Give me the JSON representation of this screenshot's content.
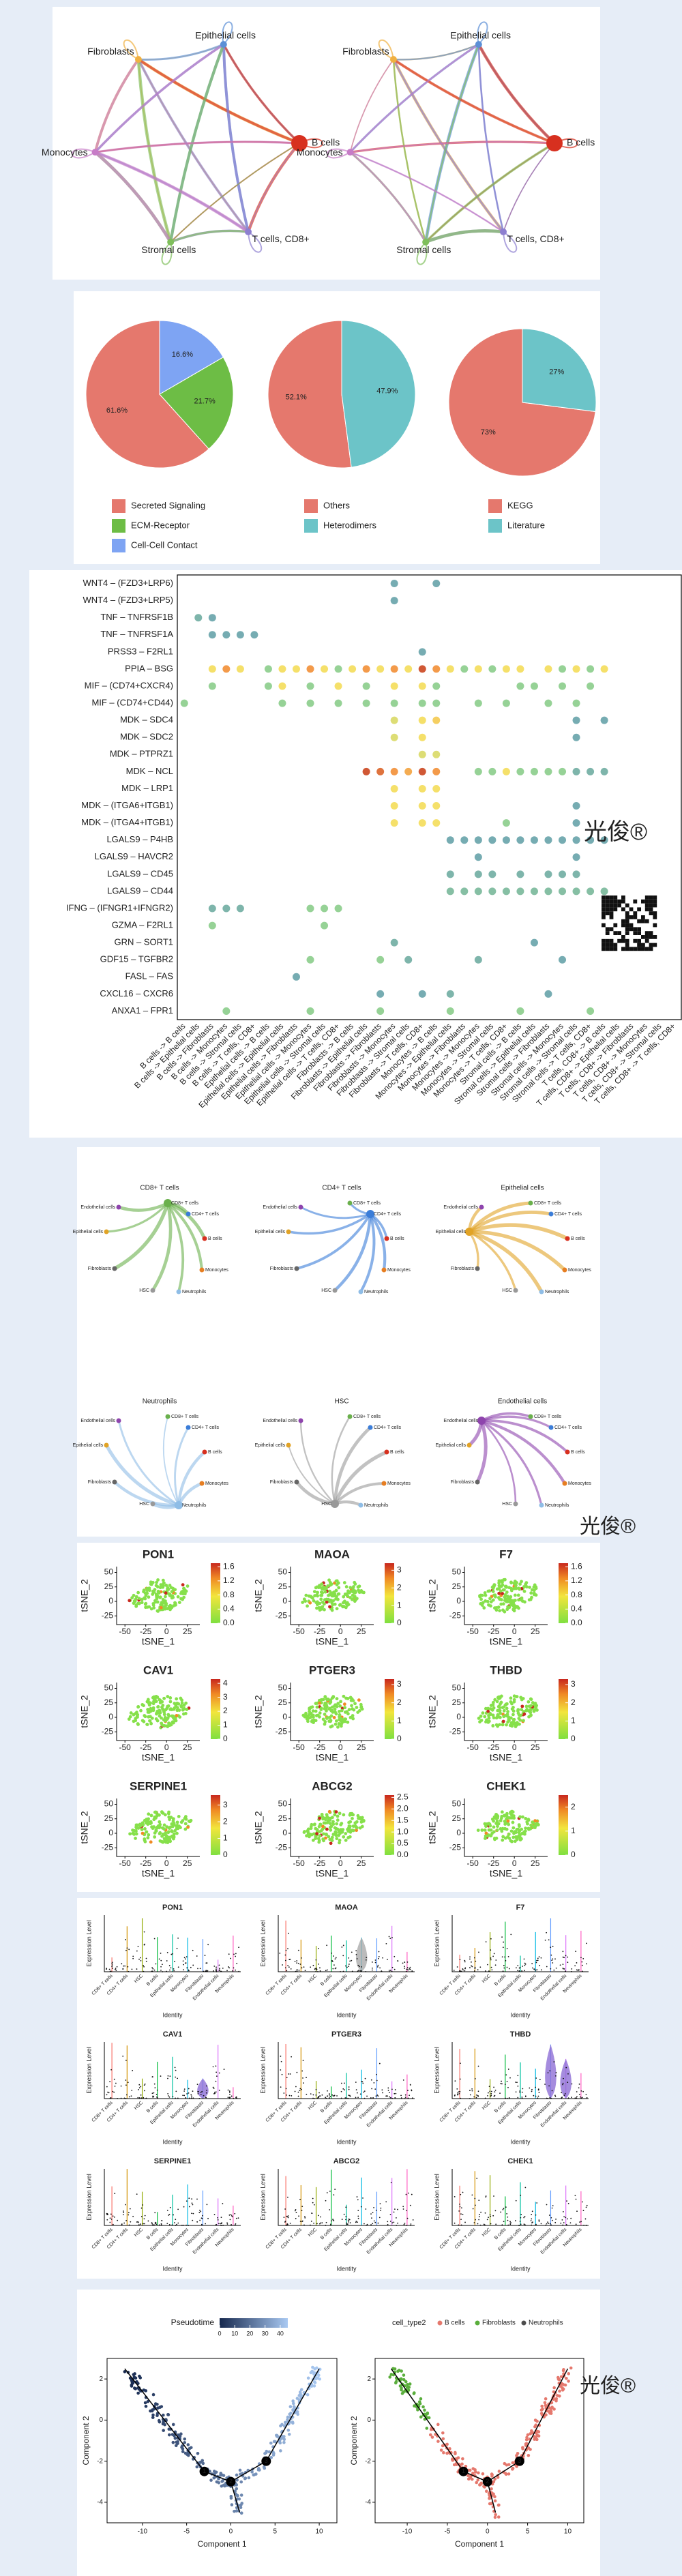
{
  "watermark": "光俊®",
  "network": {
    "nodes": [
      "Fibroblasts",
      "Epithelial cells",
      "B cells",
      "T cells, CD8+",
      "Stromal cells",
      "Monocytes"
    ]
  },
  "pies": [
    {
      "type": "pie",
      "categories": [
        "Secreted Signaling",
        "ECM-Receptor",
        "Cell-Cell Contact"
      ],
      "values": [
        61.6,
        21.7,
        16.6
      ],
      "value_labels": [
        "61.6%",
        "21.7%",
        "16.6%"
      ],
      "colors": [
        "#e5786d",
        "#6dbd45",
        "#7ea4f3"
      ]
    },
    {
      "type": "pie",
      "categories": [
        "Others",
        "Heterodimers"
      ],
      "values": [
        52.1,
        47.9
      ],
      "value_labels": [
        "52.1%",
        "47.9%"
      ],
      "colors": [
        "#e5786d",
        "#6cc4c8"
      ]
    },
    {
      "type": "pie",
      "categories": [
        "KEGG",
        "Literature"
      ],
      "values": [
        73,
        27
      ],
      "value_labels": [
        "73%",
        "27%"
      ],
      "colors": [
        "#e5786d",
        "#6cc4c8"
      ]
    }
  ],
  "dotplot": {
    "rows": [
      "WNT4 – (FZD3+LRP6)",
      "WNT4 – (FZD3+LRP5)",
      "TNF – TNFRSF1B",
      "TNF – TNFRSF1A",
      "PRSS3 – F2RL1",
      "PPIA – BSG",
      "MIF – (CD74+CXCR4)",
      "MIF – (CD74+CD44)",
      "MDK – SDC4",
      "MDK – SDC2",
      "MDK – PTPRZ1",
      "MDK – NCL",
      "MDK – LRP1",
      "MDK – (ITGA6+ITGB1)",
      "MDK – (ITGA4+ITGB1)",
      "LGALS9 – P4HB",
      "LGALS9 – HAVCR2",
      "LGALS9 – CD45",
      "LGALS9 – CD44",
      "IFNG – (IFNGR1+IFNGR2)",
      "GZMA – F2RL1",
      "GRN – SORT1",
      "GDF15 – TGFBR2",
      "FASL – FAS",
      "CXCL16 – CXCR6",
      "ANXA1 – FPR1"
    ],
    "columns": [
      "B cells -> B cells",
      "B cells -> Epithelial cells",
      "B cells -> Fibroblasts",
      "B cells -> Monocytes",
      "B cells -> Stromal cells",
      "B cells -> T cells, CD8+",
      "Epithelial cells -> B cells",
      "Epithelial cells -> Epithelial cells",
      "Epithelial cells -> Fibroblasts",
      "Epithelial cells -> Monocytes",
      "Epithelial cells -> Stromal cells",
      "Epithelial cells -> T cells, CD8+",
      "Fibroblasts -> B cells",
      "Fibroblasts -> Epithelial cells",
      "Fibroblasts -> Fibroblasts",
      "Fibroblasts -> Monocytes",
      "Fibroblasts -> Stromal cells",
      "Fibroblasts -> T cells, CD8+",
      "Monocytes -> B cells",
      "Monocytes -> Epithelial cells",
      "Monocytes -> Fibroblasts",
      "Monocytes -> Monocytes",
      "Monocytes -> Stromal cells",
      "Monocytes -> T cells, CD8+",
      "Stromal cells -> B cells",
      "Stromal cells -> Epithelial cells",
      "Stromal cells -> Fibroblasts",
      "Stromal cells -> Monocytes",
      "Stromal cells -> Stromal cells",
      "Stromal cells -> T cells, CD8+",
      "T cells, CD8+ -> B cells",
      "T cells, CD8+ -> Epithelial cells",
      "T cells, CD8+ -> Fibroblasts",
      "T cells, CD8+ -> Monocytes",
      "T cells, CD8+ -> Stromal cells",
      "T cells, CD8+ -> T cells, CD8+"
    ],
    "dots": [
      [
        0,
        15,
        0.15
      ],
      [
        0,
        18,
        0.15
      ],
      [
        1,
        15,
        0.15
      ],
      [
        2,
        1,
        0.2
      ],
      [
        2,
        2,
        0.15
      ],
      [
        3,
        2,
        0.15
      ],
      [
        3,
        3,
        0.15
      ],
      [
        3,
        4,
        0.15
      ],
      [
        3,
        5,
        0.15
      ],
      [
        4,
        17,
        0.15
      ],
      [
        5,
        2,
        0.55
      ],
      [
        5,
        3,
        0.75
      ],
      [
        5,
        4,
        0.55
      ],
      [
        5,
        6,
        0.35
      ],
      [
        5,
        7,
        0.55
      ],
      [
        5,
        8,
        0.55
      ],
      [
        5,
        9,
        0.75
      ],
      [
        5,
        10,
        0.55
      ],
      [
        5,
        11,
        0.35
      ],
      [
        5,
        12,
        0.55
      ],
      [
        5,
        13,
        0.75
      ],
      [
        5,
        14,
        0.55
      ],
      [
        5,
        15,
        0.75
      ],
      [
        5,
        16,
        0.55
      ],
      [
        5,
        17,
        0.92
      ],
      [
        5,
        18,
        0.75
      ],
      [
        5,
        19,
        0.55
      ],
      [
        5,
        20,
        0.35
      ],
      [
        5,
        21,
        0.55
      ],
      [
        5,
        22,
        0.35
      ],
      [
        5,
        23,
        0.55
      ],
      [
        5,
        24,
        0.55
      ],
      [
        5,
        26,
        0.55
      ],
      [
        5,
        27,
        0.35
      ],
      [
        5,
        28,
        0.55
      ],
      [
        5,
        29,
        0.35
      ],
      [
        5,
        30,
        0.55
      ],
      [
        6,
        2,
        0.35
      ],
      [
        6,
        6,
        0.35
      ],
      [
        6,
        7,
        0.55
      ],
      [
        6,
        9,
        0.35
      ],
      [
        6,
        11,
        0.55
      ],
      [
        6,
        13,
        0.35
      ],
      [
        6,
        15,
        0.55
      ],
      [
        6,
        17,
        0.55
      ],
      [
        6,
        18,
        0.35
      ],
      [
        6,
        24,
        0.35
      ],
      [
        6,
        25,
        0.35
      ],
      [
        6,
        27,
        0.35
      ],
      [
        6,
        29,
        0.35
      ],
      [
        7,
        0,
        0.35
      ],
      [
        7,
        7,
        0.35
      ],
      [
        7,
        9,
        0.35
      ],
      [
        7,
        11,
        0.35
      ],
      [
        7,
        13,
        0.35
      ],
      [
        7,
        15,
        0.35
      ],
      [
        7,
        17,
        0.35
      ],
      [
        7,
        18,
        0.35
      ],
      [
        7,
        21,
        0.35
      ],
      [
        7,
        23,
        0.35
      ],
      [
        7,
        26,
        0.35
      ],
      [
        7,
        28,
        0.35
      ],
      [
        8,
        15,
        0.5
      ],
      [
        8,
        17,
        0.55
      ],
      [
        8,
        18,
        0.6
      ],
      [
        8,
        28,
        0.15
      ],
      [
        8,
        30,
        0.15
      ],
      [
        9,
        15,
        0.5
      ],
      [
        9,
        17,
        0.55
      ],
      [
        9,
        28,
        0.15
      ],
      [
        10,
        17,
        0.5
      ],
      [
        10,
        18,
        0.5
      ],
      [
        11,
        13,
        0.92
      ],
      [
        11,
        14,
        0.85
      ],
      [
        11,
        15,
        0.75
      ],
      [
        11,
        16,
        0.7
      ],
      [
        11,
        17,
        0.92
      ],
      [
        11,
        18,
        0.75
      ],
      [
        11,
        21,
        0.35
      ],
      [
        11,
        22,
        0.35
      ],
      [
        11,
        23,
        0.55
      ],
      [
        11,
        24,
        0.35
      ],
      [
        11,
        25,
        0.35
      ],
      [
        11,
        26,
        0.35
      ],
      [
        11,
        27,
        0.35
      ],
      [
        11,
        28,
        0.2
      ],
      [
        11,
        29,
        0.2
      ],
      [
        11,
        30,
        0.2
      ],
      [
        12,
        15,
        0.55
      ],
      [
        12,
        17,
        0.55
      ],
      [
        12,
        18,
        0.55
      ],
      [
        13,
        15,
        0.55
      ],
      [
        13,
        17,
        0.55
      ],
      [
        13,
        18,
        0.55
      ],
      [
        13,
        28,
        0.15
      ],
      [
        14,
        15,
        0.55
      ],
      [
        14,
        17,
        0.55
      ],
      [
        14,
        18,
        0.55
      ],
      [
        14,
        23,
        0.35
      ],
      [
        14,
        28,
        0.15
      ],
      [
        15,
        19,
        0.15
      ],
      [
        15,
        20,
        0.15
      ],
      [
        15,
        21,
        0.15
      ],
      [
        15,
        22,
        0.15
      ],
      [
        15,
        23,
        0.15
      ],
      [
        15,
        24,
        0.15
      ],
      [
        15,
        25,
        0.15
      ],
      [
        15,
        26,
        0.15
      ],
      [
        15,
        27,
        0.15
      ],
      [
        15,
        28,
        0.15
      ],
      [
        15,
        29,
        0.15
      ],
      [
        15,
        30,
        0.15
      ],
      [
        16,
        21,
        0.15
      ],
      [
        16,
        28,
        0.15
      ],
      [
        17,
        19,
        0.2
      ],
      [
        17,
        21,
        0.2
      ],
      [
        17,
        22,
        0.2
      ],
      [
        17,
        24,
        0.2
      ],
      [
        17,
        26,
        0.2
      ],
      [
        17,
        27,
        0.2
      ],
      [
        17,
        28,
        0.2
      ],
      [
        18,
        19,
        0.25
      ],
      [
        18,
        20,
        0.25
      ],
      [
        18,
        21,
        0.25
      ],
      [
        18,
        22,
        0.25
      ],
      [
        18,
        23,
        0.25
      ],
      [
        18,
        24,
        0.25
      ],
      [
        18,
        25,
        0.25
      ],
      [
        18,
        26,
        0.25
      ],
      [
        18,
        27,
        0.25
      ],
      [
        18,
        28,
        0.25
      ],
      [
        18,
        29,
        0.25
      ],
      [
        18,
        30,
        0.25
      ],
      [
        19,
        2,
        0.2
      ],
      [
        19,
        3,
        0.2
      ],
      [
        19,
        4,
        0.2
      ],
      [
        19,
        9,
        0.35
      ],
      [
        19,
        10,
        0.35
      ],
      [
        19,
        11,
        0.35
      ],
      [
        20,
        2,
        0.35
      ],
      [
        20,
        10,
        0.35
      ],
      [
        21,
        15,
        0.2
      ],
      [
        21,
        25,
        0.15
      ],
      [
        22,
        9,
        0.35
      ],
      [
        22,
        14,
        0.35
      ],
      [
        22,
        16,
        0.2
      ],
      [
        22,
        21,
        0.2
      ],
      [
        22,
        27,
        0.15
      ],
      [
        23,
        8,
        0.15
      ],
      [
        24,
        14,
        0.15
      ],
      [
        24,
        17,
        0.15
      ],
      [
        24,
        19,
        0.2
      ],
      [
        24,
        26,
        0.15
      ],
      [
        25,
        3,
        0.35
      ],
      [
        25,
        9,
        0.35
      ],
      [
        25,
        14,
        0.35
      ],
      [
        25,
        19,
        0.35
      ],
      [
        25,
        24,
        0.35
      ],
      [
        25,
        29,
        0.35
      ]
    ]
  },
  "trees": {
    "titles": [
      "CD8+ T cells",
      "CD4+ T cells",
      "Epithelial cells",
      "Neutrophils",
      "HSC",
      "Endothelial cells"
    ],
    "nodes": [
      "Endothelial cells",
      "CD8+ T cells",
      "CD4+ T cells",
      "Epithelial cells",
      "B cells",
      "Fibroblasts",
      "HSC",
      "Monocytes",
      "Neutrophils"
    ]
  },
  "features": {
    "genes": [
      "PON1",
      "MAOA",
      "F7",
      "CAV1",
      "PTGER3",
      "THBD",
      "SERPINE1",
      "ABCG2",
      "CHEK1"
    ],
    "xlabel": "tSNE_1",
    "ylabel": "tSNE_2",
    "xlim": [
      -60,
      40
    ],
    "xticks": [
      -50,
      -25,
      0,
      25
    ],
    "ylim": [
      -40,
      60
    ],
    "yticks": [
      -25,
      0,
      25,
      50
    ],
    "colorbars": [
      {
        "lim": [
          0,
          1.7
        ],
        "ticks": [
          {
            "value": 0,
            "label": "0.0"
          },
          0.4,
          0.8,
          1.2,
          1.6
        ]
      },
      {
        "lim": [
          0,
          3.4
        ],
        "ticks": [
          0,
          1,
          2,
          3
        ]
      },
      {
        "lim": [
          0,
          1.7
        ],
        "ticks": [
          {
            "value": 0,
            "label": "0.0"
          },
          0.4,
          0.8,
          1.2,
          1.6
        ]
      },
      {
        "lim": [
          0,
          4.3
        ],
        "ticks": [
          0,
          1,
          2,
          3,
          4
        ]
      },
      {
        "lim": [
          0,
          3.3
        ],
        "ticks": [
          0,
          1,
          2,
          3
        ]
      },
      {
        "lim": [
          0,
          3.3
        ],
        "ticks": [
          0,
          1,
          2,
          3
        ]
      },
      {
        "lim": [
          0,
          3.6
        ],
        "ticks": [
          0,
          1,
          2,
          3
        ]
      },
      {
        "lim": [
          0,
          2.6
        ],
        "ticks": [
          {
            "value": 0,
            "label": "0.0"
          },
          0.5,
          {
            "value": 1,
            "label": "1.0"
          },
          1.5,
          {
            "value": 2,
            "label": "2.0"
          },
          2.5
        ]
      },
      {
        "lim": [
          0,
          2.5
        ],
        "ticks": [
          0,
          1,
          2
        ]
      }
    ]
  },
  "violins": {
    "ylabel": "Expression Level",
    "xlabel": "Identity",
    "identities": [
      "CD8+ T cells",
      "CD4+ T cells",
      "HSC",
      "B cells",
      "Epithelial cells",
      "Monocytes",
      "Fibroblasts",
      "Endothelial cells",
      "Neutrophils"
    ]
  },
  "pseudotime": {
    "colorbar_title": "Pseudotime",
    "colorbar_lim": [
      0,
      45
    ],
    "colorbar_ticks": [
      0,
      10,
      20,
      30,
      40
    ],
    "xlabel": "Component 1",
    "ylabel": "Component 2",
    "xlim": [
      -14,
      12
    ],
    "xticks": [
      -10,
      -5,
      0,
      5,
      10
    ],
    "ylim": [
      -5,
      3
    ],
    "yticks": [
      -4,
      -2,
      0,
      2
    ],
    "branch_labels": [
      "1",
      "2",
      "3"
    ],
    "legend_title": "cell_type2",
    "legend": [
      {
        "name": "B cells",
        "color": "#e5786d"
      },
      {
        "name": "Fibroblasts",
        "color": "#5aae3c"
      },
      {
        "name": "Neutrophils",
        "color": "#4d4d4d"
      }
    ]
  }
}
